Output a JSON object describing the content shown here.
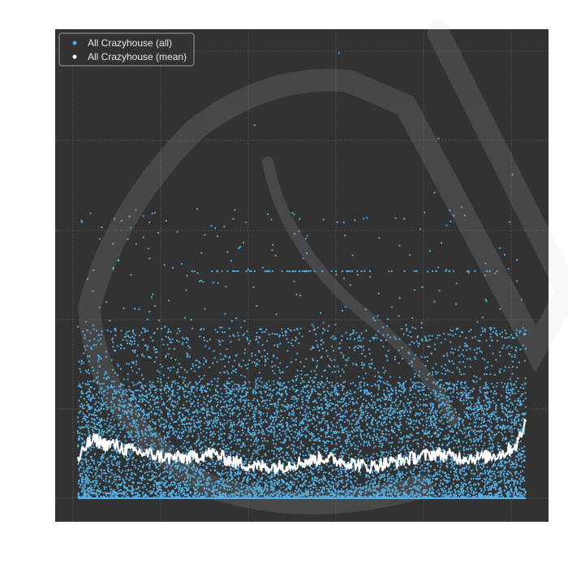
{
  "chart_data": {
    "type": "scatter",
    "title": "",
    "xlabel": "",
    "ylabel": "",
    "xlim": [
      0,
      1000
    ],
    "ylim": [
      0,
      100
    ],
    "grid": true,
    "legend_position": "top-left",
    "background": "#323232",
    "watermark": "lichess-knight-icon",
    "series": [
      {
        "name": "All Crazyhouse (all)",
        "marker": "dot",
        "color": "#56b0e6",
        "distribution": "dense band from y 0 to 40 across x 0-1000, sparse points up to y 100"
      },
      {
        "name": "All Crazyhouse (mean)",
        "marker": "line",
        "color": "#ffffff",
        "x": [
          0,
          20,
          40,
          60,
          80,
          100,
          150,
          200,
          250,
          300,
          350,
          400,
          450,
          500,
          550,
          600,
          650,
          700,
          750,
          800,
          850,
          900,
          950,
          980,
          1000
        ],
        "y": [
          8,
          12,
          13,
          12,
          12,
          11,
          10,
          9,
          9,
          10,
          8,
          7,
          7,
          8,
          9,
          8,
          7,
          8,
          9,
          10,
          9,
          9,
          10,
          12,
          17
        ]
      }
    ]
  }
}
